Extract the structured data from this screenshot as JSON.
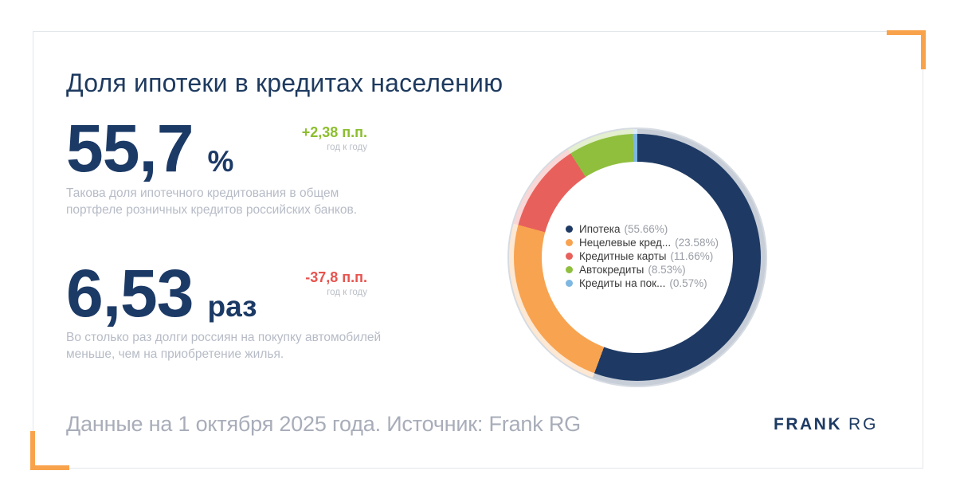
{
  "title": "Доля ипотеки в кредитах населению",
  "colors": {
    "brand_navy": "#1d3a63",
    "heading_navy": "#1e3a5f",
    "number_navy": "#1c3a66",
    "accent_orange": "#f8a34c",
    "positive_green": "#8cbe2f",
    "negative_red": "#e8534e",
    "muted_text": "#b6bbc6",
    "footer_text": "#a8adb9"
  },
  "stats": [
    {
      "value": "55,7",
      "unit": "%",
      "delta": "+2,38 п.п.",
      "delta_direction": "up",
      "delta_color": "#8cbe2f",
      "delta_note": "год к году",
      "description": "Такова доля ипотечного кредитования в общем портфеле розничных кредитов российских банков."
    },
    {
      "value": "6,53",
      "unit": "раз",
      "delta": "-37,8 п.п.",
      "delta_direction": "down",
      "delta_color": "#e8534e",
      "delta_note": "год к году",
      "description": "Во столько раз долги россиян на покупку автомобилей меньше, чем на приобретение жилья."
    }
  ],
  "chart_data": {
    "type": "pie",
    "donut": true,
    "labels": [
      "Ипотека",
      "Нецелевые кред...",
      "Кредитные карты",
      "Автокредиты",
      "Кредиты на пок..."
    ],
    "values": [
      55.66,
      23.58,
      11.66,
      8.53,
      0.57
    ],
    "unit": "%",
    "colors": [
      "#1e3a64",
      "#f8a350",
      "#e8605c",
      "#8fbf3d",
      "#7db7e2"
    ],
    "start_angle_deg": 0,
    "direction": "clockwise",
    "legend_position": "center"
  },
  "footer": {
    "source_text": "Данные на 1 октября 2025 года. Источник: Frank RG",
    "logo_primary": "FRANK",
    "logo_secondary": "RG"
  }
}
